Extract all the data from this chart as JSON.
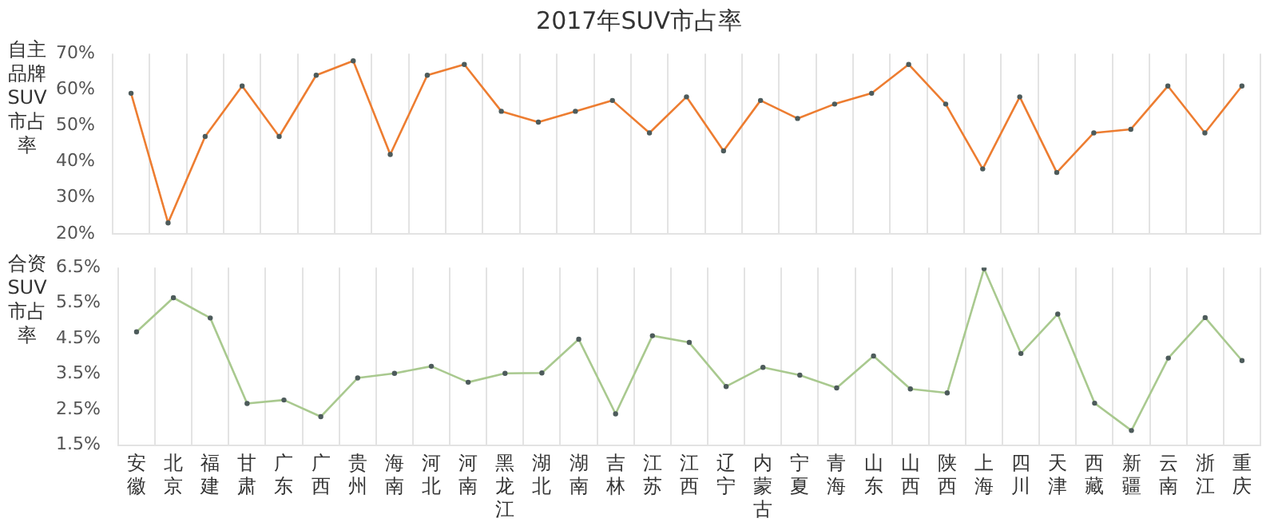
{
  "chart_data": [
    {
      "type": "line",
      "title": "2017年SUV市占率",
      "ylabel": "自主品牌SUV市占率",
      "categories": [
        "安徽",
        "北京",
        "福建",
        "甘肃",
        "广东",
        "广西",
        "贵州",
        "海南",
        "河北",
        "河南",
        "黑龙江",
        "湖北",
        "湖南",
        "吉林",
        "江苏",
        "江西",
        "辽宁",
        "内蒙古",
        "宁夏",
        "青海",
        "山东",
        "山西",
        "陕西",
        "上海",
        "四川",
        "天津",
        "西藏",
        "新疆",
        "云南",
        "浙江",
        "重庆"
      ],
      "series": [
        {
          "color": "#ed7d31",
          "values": [
            59,
            23,
            47,
            61,
            47,
            64,
            68,
            42,
            64,
            67,
            54,
            51,
            54,
            57,
            48,
            58,
            43,
            57,
            52,
            56,
            59,
            67,
            56,
            38,
            58,
            37,
            48,
            49,
            61,
            48,
            61
          ]
        }
      ],
      "ylim": [
        20,
        70
      ],
      "yticks": [
        {
          "value": 20,
          "label": "20%"
        },
        {
          "value": 30,
          "label": "30%"
        },
        {
          "value": 40,
          "label": "40%"
        },
        {
          "value": 50,
          "label": "50%"
        },
        {
          "value": 60,
          "label": "60%"
        },
        {
          "value": 70,
          "label": "70%"
        }
      ],
      "grid": "x",
      "tick_labels": "y",
      "marker": "circle",
      "legend": false
    },
    {
      "type": "line",
      "ylabel": "合资SUV市占率",
      "categories": [
        "安徽",
        "北京",
        "福建",
        "甘肃",
        "广东",
        "广西",
        "贵州",
        "海南",
        "河北",
        "河南",
        "黑龙江",
        "湖北",
        "湖南",
        "吉林",
        "江苏",
        "江西",
        "辽宁",
        "内蒙古",
        "宁夏",
        "青海",
        "山东",
        "山西",
        "陕西",
        "上海",
        "四川",
        "天津",
        "西藏",
        "新疆",
        "云南",
        "浙江",
        "重庆"
      ],
      "series": [
        {
          "color": "#a9c98f",
          "values": [
            4.69,
            5.65,
            5.08,
            2.67,
            2.77,
            2.3,
            3.39,
            3.52,
            3.72,
            3.27,
            3.52,
            3.53,
            4.48,
            2.38,
            4.58,
            4.39,
            3.15,
            3.69,
            3.47,
            3.11,
            4.01,
            3.08,
            2.97,
            6.47,
            4.08,
            5.19,
            2.68,
            1.91,
            3.95,
            5.09,
            3.88
          ]
        }
      ],
      "ylim": [
        1.5,
        6.5
      ],
      "yticks": [
        {
          "value": 1.5,
          "label": "1.5%"
        },
        {
          "value": 2.5,
          "label": "2.5%"
        },
        {
          "value": 3.5,
          "label": "3.5%"
        },
        {
          "value": 4.5,
          "label": "4.5%"
        },
        {
          "value": 5.5,
          "label": "5.5%"
        },
        {
          "value": 6.5,
          "label": "6.5%"
        }
      ],
      "grid": "x",
      "marker": "circle",
      "legend": false
    }
  ]
}
